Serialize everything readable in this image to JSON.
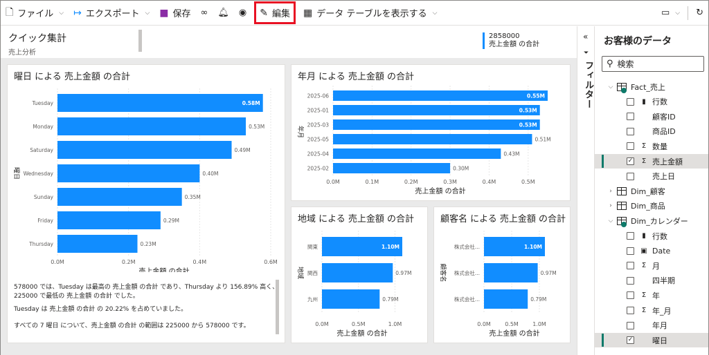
{
  "toolbar": {
    "file": "ファイル",
    "export": "エクスポート",
    "save": "保存",
    "edit": "編集",
    "show_table": "データ テーブルを表示する"
  },
  "header": {
    "title": "クイック集計",
    "subtitle": "売上分析",
    "kpi_value": "2858000",
    "kpi_label": "売上金額 の合計"
  },
  "cards": {
    "weekday": {
      "title": "曜日 による 売上金額 の合計",
      "xlabel": "売上金額 の合計",
      "ylabel": "曜日",
      "narrative": [
        "578000 では、Tuesday は最高の 売上金額 の合計 であり、Thursday より 156.89% 高く、225000 で最低の 売上金額 の合計 でした。",
        "Tuesday は 売上金額 の合計 の 20.22% を占めていました。",
        "すべての 7 曜日 について、売上金額 の合計 の範囲は 225000 から 578000 です。"
      ]
    },
    "month": {
      "title": "年月 による 売上金額 の合計",
      "xlabel": "売上金額 の合計",
      "ylabel": "年月"
    },
    "region": {
      "title": "地域 による 売上金額 の合計",
      "xlabel": "売上金額 の合計",
      "ylabel": "地域"
    },
    "customer": {
      "title": "顧客名 による 売上金額 の合計",
      "xlabel": "売上金額 の合計",
      "ylabel": "顧客名"
    }
  },
  "chart_data": [
    {
      "type": "bar",
      "orientation": "horizontal",
      "title": "曜日 による 売上金額 の合計",
      "categories": [
        "Tuesday",
        "Monday",
        "Saturday",
        "Wednesday",
        "Sunday",
        "Friday",
        "Thursday"
      ],
      "values": [
        578000,
        530000,
        490000,
        400000,
        350000,
        290000,
        225000
      ],
      "data_labels": [
        "0.58M",
        "0.53M",
        "0.49M",
        "0.40M",
        "0.35M",
        "0.29M",
        "0.23M"
      ],
      "xticks": [
        "0.0M",
        "0.2M",
        "0.4M",
        "0.6M"
      ],
      "xlim": [
        0,
        600000
      ],
      "xlabel": "売上金額 の合計",
      "ylabel": "曜日",
      "color": "#118dff"
    },
    {
      "type": "bar",
      "orientation": "horizontal",
      "title": "年月 による 売上金額 の合計",
      "categories": [
        "2025-06",
        "2025-01",
        "2025-03",
        "2025-05",
        "2025-04",
        "2025-02"
      ],
      "values": [
        550000,
        530000,
        530000,
        510000,
        430000,
        300000
      ],
      "data_labels": [
        "0.55M",
        "0.53M",
        "0.53M",
        "0.51M",
        "0.43M",
        "0.30M"
      ],
      "xticks": [
        "0.0M",
        "0.1M",
        "0.2M",
        "0.3M",
        "0.4M",
        "0.5M"
      ],
      "xlim": [
        0,
        550000
      ],
      "xlabel": "売上金額 の合計",
      "ylabel": "年月",
      "color": "#118dff"
    },
    {
      "type": "bar",
      "orientation": "horizontal",
      "title": "地域 による 売上金額 の合計",
      "categories": [
        "関東",
        "関西",
        "九州"
      ],
      "values": [
        1100000,
        970000,
        790000
      ],
      "data_labels": [
        "1.10M",
        "0.97M",
        "0.79M"
      ],
      "xticks": [
        "0.0M",
        "0.5M",
        "1.0M"
      ],
      "xlim": [
        0,
        1100000
      ],
      "xlabel": "売上金額 の合計",
      "ylabel": "地域",
      "color": "#118dff"
    },
    {
      "type": "bar",
      "orientation": "horizontal",
      "title": "顧客名 による 売上金額 の合計",
      "categories": [
        "株式会社...",
        "株式会社...",
        "株式会社..."
      ],
      "values": [
        1100000,
        970000,
        790000
      ],
      "data_labels": [
        "1.10M",
        "0.97M",
        "0.79M"
      ],
      "xticks": [
        "0.0M",
        "0.5M",
        "1.0M"
      ],
      "xlim": [
        0,
        1100000
      ],
      "xlabel": "売上金額 の合計",
      "ylabel": "顧客名",
      "color": "#118dff"
    }
  ],
  "filters": {
    "label": "フィルター"
  },
  "data_pane": {
    "title": "お客様のデータ",
    "search_placeholder": "検索",
    "rows": [
      {
        "label": "Fact_売上",
        "kind": "table",
        "expanded": true,
        "level": 0
      },
      {
        "label": "行数",
        "kind": "count",
        "checked": false,
        "level": 1
      },
      {
        "label": "顧客ID",
        "kind": "text",
        "checked": false,
        "level": 1
      },
      {
        "label": "商品ID",
        "kind": "text",
        "checked": false,
        "level": 1
      },
      {
        "label": "数量",
        "kind": "sum",
        "checked": false,
        "level": 1
      },
      {
        "label": "売上金額",
        "kind": "sum",
        "checked": true,
        "level": 1,
        "selected": true
      },
      {
        "label": "売上日",
        "kind": "text",
        "checked": false,
        "level": 1
      },
      {
        "label": "Dim_顧客",
        "kind": "table",
        "expanded": false,
        "level": 0
      },
      {
        "label": "Dim_商品",
        "kind": "table",
        "expanded": false,
        "level": 0
      },
      {
        "label": "Dim_カレンダー",
        "kind": "table",
        "expanded": true,
        "level": 0
      },
      {
        "label": "行数",
        "kind": "count",
        "checked": false,
        "level": 1
      },
      {
        "label": "Date",
        "kind": "date",
        "checked": false,
        "level": 1
      },
      {
        "label": "月",
        "kind": "sum",
        "checked": false,
        "level": 1
      },
      {
        "label": "四半期",
        "kind": "text",
        "checked": false,
        "level": 1
      },
      {
        "label": "年",
        "kind": "sum",
        "checked": false,
        "level": 1
      },
      {
        "label": "年_月",
        "kind": "sum",
        "checked": false,
        "level": 1
      },
      {
        "label": "年月",
        "kind": "text",
        "checked": false,
        "level": 1
      },
      {
        "label": "曜日",
        "kind": "text",
        "checked": true,
        "level": 1,
        "selected": true
      }
    ]
  }
}
